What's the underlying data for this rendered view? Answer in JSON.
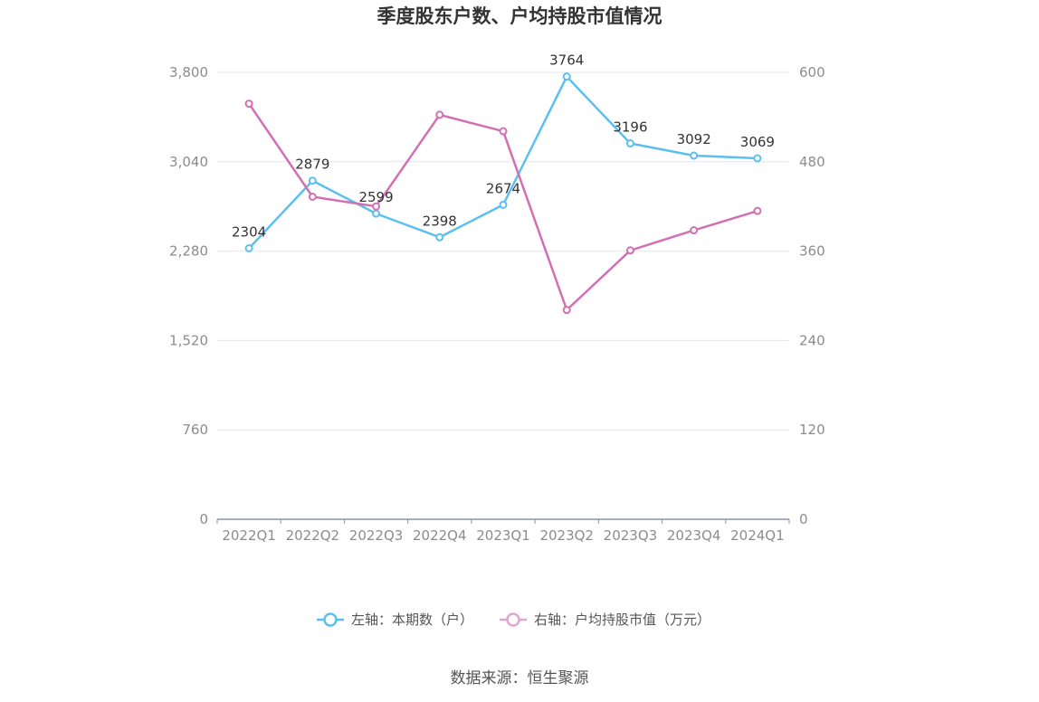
{
  "chart_data": {
    "type": "line",
    "title": "季度股东户数、户均持股市值情况",
    "categories": [
      "2022Q1",
      "2022Q2",
      "2022Q3",
      "2022Q4",
      "2023Q1",
      "2023Q2",
      "2023Q3",
      "2023Q4",
      "2024Q1"
    ],
    "series": [
      {
        "name": "左轴：本期数（户）",
        "axis": "left",
        "color": "#5bc0f0",
        "values": [
          2304,
          2879,
          2599,
          2398,
          2674,
          3764,
          3196,
          3092,
          3069
        ],
        "labels": [
          "2304",
          "2879",
          "2599",
          "2398",
          "2674",
          "3764",
          "3196",
          "3092",
          "3069"
        ]
      },
      {
        "name": "右轴：户均持股市值（万元）",
        "axis": "right",
        "color": "#d36fb3",
        "values": [
          558,
          433,
          420,
          543,
          521,
          281,
          361,
          388,
          414
        ]
      }
    ],
    "y_left": {
      "min": 0,
      "max": 3800,
      "ticks": [
        "0",
        "760",
        "1,520",
        "2,280",
        "3,040",
        "3,800"
      ],
      "tick_values": [
        0,
        760,
        1520,
        2280,
        3040,
        3800
      ]
    },
    "y_right": {
      "min": 0,
      "max": 600,
      "ticks": [
        "0",
        "120",
        "240",
        "360",
        "480",
        "600"
      ],
      "tick_values": [
        0,
        120,
        240,
        360,
        480,
        600
      ]
    },
    "grid": true,
    "legend_position": "bottom"
  },
  "source": "数据来源：恒生聚源"
}
